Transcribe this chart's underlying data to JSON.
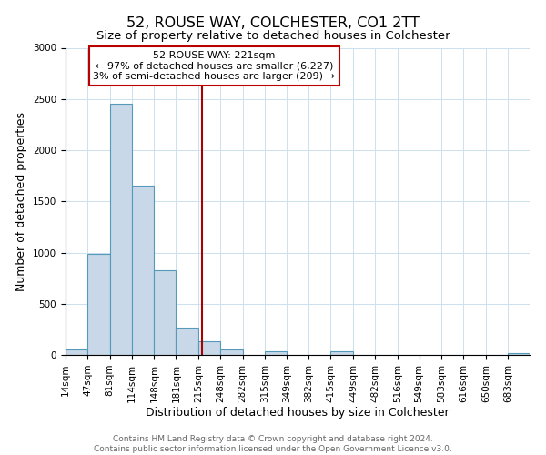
{
  "title": "52, ROUSE WAY, COLCHESTER, CO1 2TT",
  "subtitle": "Size of property relative to detached houses in Colchester",
  "xlabel": "Distribution of detached houses by size in Colchester",
  "ylabel": "Number of detached properties",
  "bar_labels": [
    "14sqm",
    "47sqm",
    "81sqm",
    "114sqm",
    "148sqm",
    "181sqm",
    "215sqm",
    "248sqm",
    "282sqm",
    "315sqm",
    "349sqm",
    "382sqm",
    "415sqm",
    "449sqm",
    "482sqm",
    "516sqm",
    "549sqm",
    "583sqm",
    "616sqm",
    "650sqm",
    "683sqm"
  ],
  "bar_values": [
    55,
    990,
    2450,
    1650,
    830,
    270,
    130,
    50,
    0,
    35,
    0,
    0,
    40,
    0,
    0,
    0,
    0,
    0,
    0,
    0,
    20
  ],
  "bin_edges": [
    14,
    47,
    81,
    114,
    148,
    181,
    215,
    248,
    282,
    315,
    349,
    382,
    415,
    449,
    482,
    516,
    549,
    583,
    616,
    650,
    683,
    716
  ],
  "bar_color": "#c8d8e8",
  "bar_edge_color": "#5599bb",
  "vline_x": 221,
  "vline_color": "#aa0000",
  "ylim": [
    0,
    3000
  ],
  "yticks": [
    0,
    500,
    1000,
    1500,
    2000,
    2500,
    3000
  ],
  "annotation_title": "52 ROUSE WAY: 221sqm",
  "annotation_line1": "← 97% of detached houses are smaller (6,227)",
  "annotation_line2": "3% of semi-detached houses are larger (209) →",
  "annotation_box_color": "#ffffff",
  "annotation_box_edge": "#bb0000",
  "footer_line1": "Contains HM Land Registry data © Crown copyright and database right 2024.",
  "footer_line2": "Contains public sector information licensed under the Open Government Licence v3.0.",
  "background_color": "#ffffff",
  "grid_color": "#cce0ee",
  "title_fontsize": 11.5,
  "subtitle_fontsize": 9.5,
  "xlabel_fontsize": 9,
  "ylabel_fontsize": 9,
  "tick_fontsize": 7.5,
  "footer_fontsize": 6.5,
  "annotation_fontsize": 8
}
